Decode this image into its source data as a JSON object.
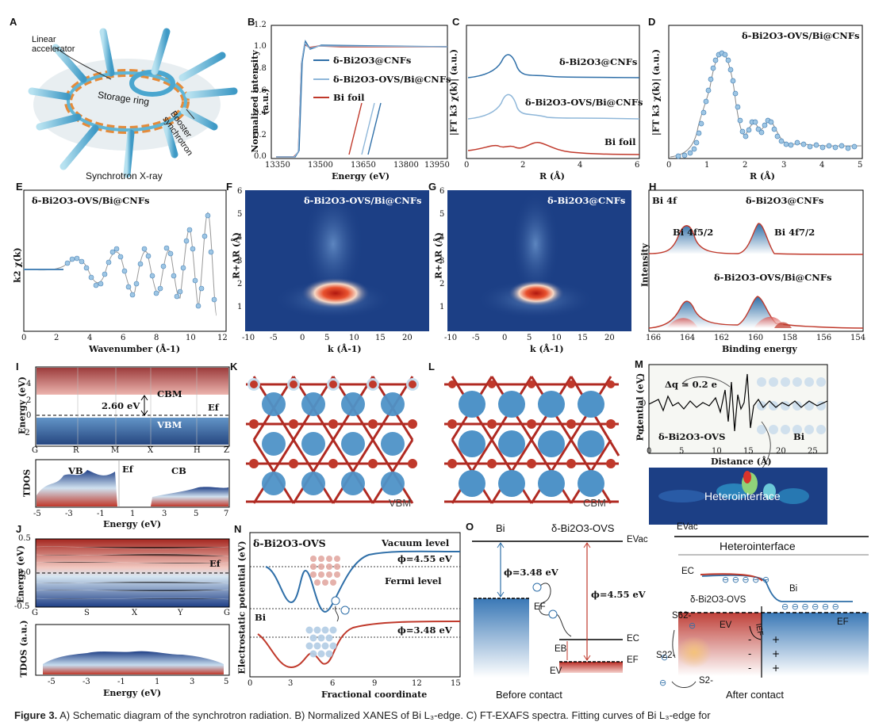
{
  "panelA": {
    "label": "A",
    "linear_accelerator": "Linear accelerator",
    "storage_ring": "Storage ring",
    "booster": "Booster synchrotron",
    "bottom": "Synchrotron X-ray"
  },
  "panelB": {
    "label": "B",
    "ylabel": "Normalized intensity (a.u.)",
    "xlabel": "Energy (eV)",
    "xticks": [
      "13350",
      "13500",
      "13650",
      "13800",
      "13950"
    ],
    "yticks": [
      "0.0",
      "0.2",
      "0.4",
      "0.6",
      "0.8",
      "1.0",
      "1.2"
    ],
    "legend": [
      "δ-Bi2O3@CNFs",
      "δ-Bi2O3-OVS/Bi@CNFs",
      "Bi foil"
    ]
  },
  "panelC": {
    "label": "C",
    "ylabel": "|FT k3 χ(k)| (a.u.)",
    "xlabel": "R (Å)",
    "xticks": [
      "0",
      "2",
      "4",
      "6"
    ],
    "labels": [
      "δ-Bi2O3@CNFs",
      "δ-Bi2O3-OVS/Bi@CNFs",
      "Bi foil"
    ]
  },
  "panelD": {
    "label": "D",
    "ylabel": "|FT k3 χ(k)| (a.u.)",
    "xlabel": "R (Å)",
    "xticks": [
      "0",
      "1",
      "2",
      "3",
      "4",
      "5"
    ],
    "title": "δ-Bi2O3-OVS/Bi@CNFs"
  },
  "panelE": {
    "label": "E",
    "ylabel": "k2 χ(k)",
    "xlabel": "Wavenumber (Å-1)",
    "xticks": [
      "0",
      "2",
      "4",
      "6",
      "8",
      "10",
      "12"
    ],
    "title": "δ-Bi2O3-OVS/Bi@CNFs"
  },
  "panelF": {
    "label": "F",
    "ylabel": "R+ΔR (Å)",
    "xlabel": "k (Å-1)",
    "xticks": [
      "-10",
      "-5",
      "0",
      "5",
      "10",
      "15",
      "20"
    ],
    "yticks": [
      "1",
      "2",
      "3",
      "4",
      "5",
      "6"
    ],
    "title": "δ-Bi2O3-OVS/Bi@CNFs"
  },
  "panelG": {
    "label": "G",
    "ylabel": "R+ΔR (Å)",
    "xlabel": "k (Å-1)",
    "xticks": [
      "-10",
      "-5",
      "0",
      "5",
      "10",
      "15",
      "20"
    ],
    "yticks": [
      "1",
      "2",
      "3",
      "4",
      "5",
      "6"
    ],
    "title": "δ-Bi2O3@CNFs"
  },
  "panelH": {
    "label": "H",
    "ylabel": "Intensity",
    "xlabel": "Binding energy",
    "xticks": [
      "166",
      "164",
      "162",
      "160",
      "158",
      "156",
      "154"
    ],
    "bi4f": "Bi 4f",
    "top_sample": "δ-Bi2O3@CNFs",
    "bottom_sample": "δ-Bi2O3-OVS/Bi@CNFs",
    "peak1": "Bi 4f5/2",
    "peak2": "Bi 4f7/2"
  },
  "panelI": {
    "label": "I",
    "ylabel": "Energy (eV)",
    "kpoints": [
      "G",
      "R",
      "M",
      "X",
      "H",
      "Z"
    ],
    "yticks": [
      "-2",
      "0",
      "2",
      "4"
    ],
    "cbm": "CBM",
    "vbm": "VBM",
    "gap": "2.60 eV",
    "ef": "Ef",
    "tdos_ylabel": "TDOS",
    "tdos_xlabel": "Energy (eV)",
    "tdos_xticks": [
      "-5",
      "-3",
      "-1",
      "1",
      "3",
      "5",
      "7"
    ],
    "vb": "VB",
    "cb": "CB"
  },
  "panelK": {
    "label": "K",
    "tag": "VBM"
  },
  "panelL": {
    "label": "L",
    "tag": "CBM"
  },
  "panelM": {
    "label": "M",
    "ylabel": "Potential (eV)",
    "xlabel": "Distance (Å)",
    "xticks": [
      "0",
      "5",
      "10",
      "15",
      "20",
      "25"
    ],
    "yticks": [
      "-1",
      "0",
      "1"
    ],
    "dq": "Δq = 0.2 e",
    "left": "δ-Bi2O3-OVS",
    "right": "Bi",
    "heterointerface": "Heterointerface"
  },
  "panelJ": {
    "label": "J",
    "ylabel": "Energy (eV)",
    "kpoints": [
      "G",
      "S",
      "X",
      "Y",
      "G"
    ],
    "yticks": [
      "-0.5",
      "0.0",
      "0.5"
    ],
    "ef": "Ef",
    "tdos_ylabel": "TDOS (a.u.)",
    "tdos_xlabel": "Energy (eV)",
    "tdos_xticks": [
      "-5",
      "-3",
      "-1",
      "1",
      "3",
      "5"
    ]
  },
  "panelN": {
    "label": "N",
    "ylabel": "Electrostatic potential (eV)",
    "xlabel": "Fractional coordinate",
    "xticks": [
      "0",
      "3",
      "6",
      "9",
      "12",
      "15"
    ],
    "top_label": "δ-Bi2O3-OVS",
    "bottom_label": "Bi",
    "vacuum": "Vacuum level",
    "fermi": "Fermi level",
    "phi1": "ϕ=4.55 eV",
    "phi2": "ϕ=3.48 eV"
  },
  "panelO": {
    "label": "O",
    "bi": "Bi",
    "bi2o3": "δ-Bi2O3-OVS",
    "evac": "EVac",
    "phi1": "ϕ=3.48 eV",
    "phi2": "ϕ=4.55 eV",
    "ef": "EF",
    "ec": "EC",
    "eb": "EB",
    "ev": "EV",
    "before": "Before contact",
    "after": "After contact",
    "evac2": "EVac",
    "heterointerface": "Heterointerface",
    "ec2": "EC",
    "bi2": "Bi",
    "bi2o3_2": "δ-Bi2O3-OVS",
    "ev2": "EV",
    "ef2": "EF",
    "ief": "IEF",
    "s6": "S62-",
    "s2": "S22-",
    "s": "S2-"
  },
  "caption": {
    "figure": "Figure 3.",
    "text": " A) Schematic diagram of the synchrotron radiation. B) Normalized XANES of Bi L₃-edge. C) FT-EXAFS spectra. Fitting curves of Bi L₃-edge for"
  },
  "colors": {
    "blue": "#2f6fa8",
    "lightblue": "#8fb7d9",
    "red": "#c0392b",
    "navy": "#1f3f86"
  }
}
